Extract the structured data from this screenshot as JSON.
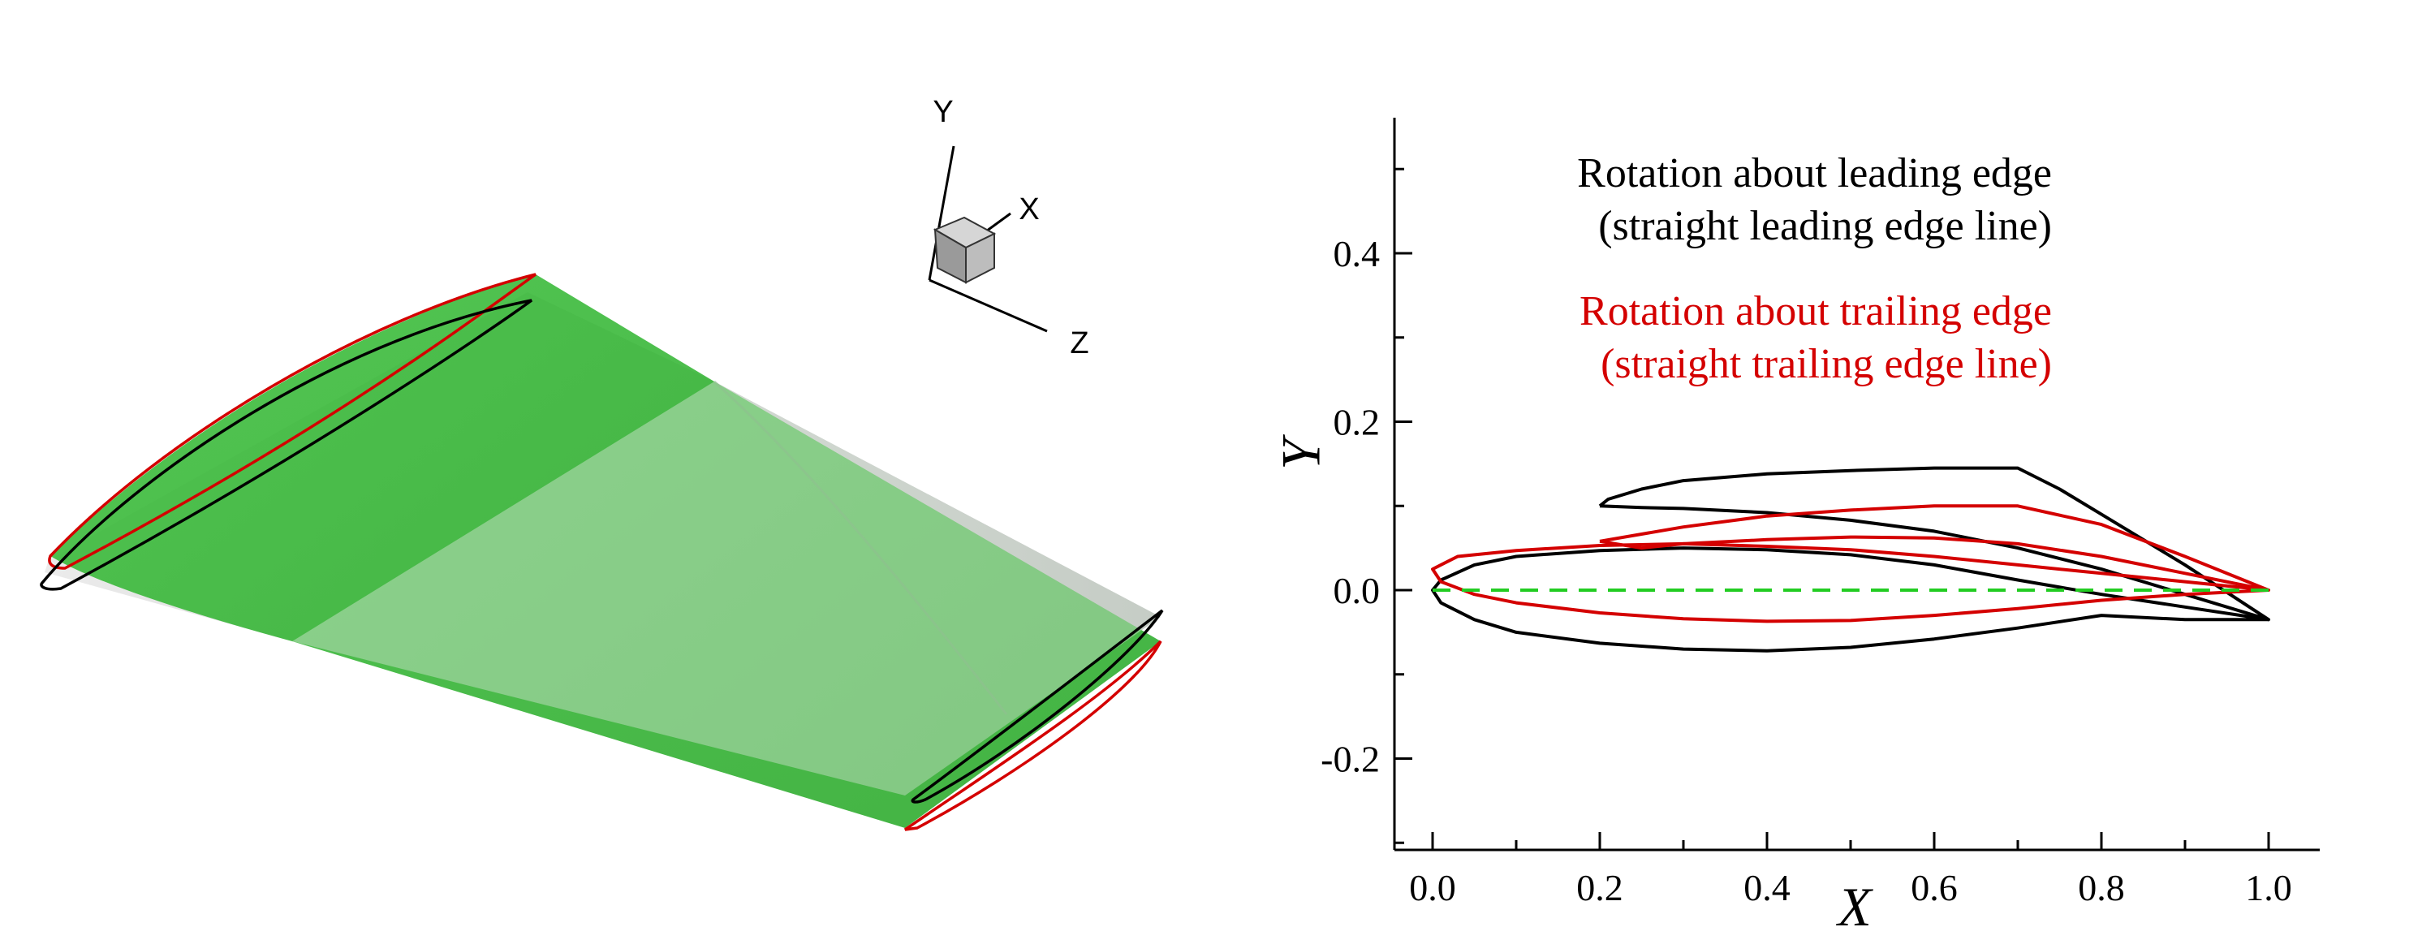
{
  "triad": {
    "y": "Y",
    "x": "X",
    "z": "Z"
  },
  "chart_data": {
    "type": "line",
    "title": "",
    "xlabel": "X",
    "ylabel": "Y",
    "xlim": [
      -0.05,
      1.05
    ],
    "ylim": [
      -0.3,
      0.57
    ],
    "grid": false,
    "xticks": [
      "0.0",
      "0.2",
      "0.4",
      "0.6",
      "0.8",
      "1.0"
    ],
    "xtick_values": [
      0.0,
      0.2,
      0.4,
      0.6,
      0.8,
      1.0
    ],
    "yticks": [
      "-0.2",
      "0.0",
      "0.2",
      "0.4"
    ],
    "ytick_values": [
      -0.2,
      0.0,
      0.2,
      0.4
    ],
    "legend_position": "top-right",
    "annotations": [
      {
        "line1": "Rotation about leading edge",
        "line2": "(straight leading edge line)",
        "color": "#000000"
      },
      {
        "line1": "Rotation about trailing edge",
        "line2": "(straight trailing edge line)",
        "color": "#d40000"
      }
    ],
    "series": [
      {
        "color": "#000000",
        "style": "solid",
        "points": [
          [
            1.0,
            -0.035
          ],
          [
            0.9,
            -0.02
          ],
          [
            0.8,
            -0.005
          ],
          [
            0.7,
            0.012
          ],
          [
            0.6,
            0.03
          ],
          [
            0.5,
            0.042
          ],
          [
            0.4,
            0.048
          ],
          [
            0.3,
            0.05
          ],
          [
            0.2,
            0.047
          ],
          [
            0.1,
            0.04
          ],
          [
            0.05,
            0.03
          ],
          [
            0.01,
            0.012
          ],
          [
            0.0,
            0.0
          ],
          [
            0.01,
            -0.015
          ],
          [
            0.05,
            -0.035
          ],
          [
            0.1,
            -0.05
          ],
          [
            0.2,
            -0.063
          ],
          [
            0.3,
            -0.07
          ],
          [
            0.4,
            -0.072
          ],
          [
            0.5,
            -0.068
          ],
          [
            0.6,
            -0.058
          ],
          [
            0.7,
            -0.045
          ],
          [
            0.8,
            -0.03
          ],
          [
            0.9,
            -0.035
          ],
          [
            1.0,
            -0.035
          ]
        ]
      },
      {
        "color": "#000000",
        "style": "solid",
        "points": [
          [
            0.2,
            0.1
          ],
          [
            0.21,
            0.108
          ],
          [
            0.25,
            0.12
          ],
          [
            0.3,
            0.13
          ],
          [
            0.4,
            0.138
          ],
          [
            0.5,
            0.142
          ],
          [
            0.6,
            0.145
          ],
          [
            0.7,
            0.145
          ],
          [
            0.75,
            0.12
          ],
          [
            0.8,
            0.09
          ],
          [
            0.9,
            0.03
          ],
          [
            1.0,
            -0.035
          ],
          [
            0.9,
            -0.005
          ],
          [
            0.8,
            0.025
          ],
          [
            0.7,
            0.05
          ],
          [
            0.6,
            0.07
          ],
          [
            0.5,
            0.083
          ],
          [
            0.4,
            0.092
          ],
          [
            0.3,
            0.097
          ],
          [
            0.25,
            0.098
          ],
          [
            0.2,
            0.1
          ]
        ]
      },
      {
        "color": "#d40000",
        "style": "solid",
        "points": [
          [
            1.0,
            0.0
          ],
          [
            0.9,
            0.01
          ],
          [
            0.8,
            0.02
          ],
          [
            0.7,
            0.03
          ],
          [
            0.6,
            0.04
          ],
          [
            0.5,
            0.048
          ],
          [
            0.4,
            0.052
          ],
          [
            0.3,
            0.055
          ],
          [
            0.2,
            0.053
          ],
          [
            0.1,
            0.047
          ],
          [
            0.03,
            0.04
          ],
          [
            0.0,
            0.025
          ],
          [
            0.01,
            0.01
          ],
          [
            0.05,
            -0.005
          ],
          [
            0.1,
            -0.015
          ],
          [
            0.2,
            -0.027
          ],
          [
            0.3,
            -0.034
          ],
          [
            0.4,
            -0.037
          ],
          [
            0.5,
            -0.036
          ],
          [
            0.6,
            -0.03
          ],
          [
            0.7,
            -0.022
          ],
          [
            0.8,
            -0.012
          ],
          [
            0.9,
            -0.005
          ],
          [
            1.0,
            0.0
          ]
        ]
      },
      {
        "color": "#d40000",
        "style": "solid",
        "points": [
          [
            0.2,
            0.058
          ],
          [
            0.3,
            0.075
          ],
          [
            0.4,
            0.088
          ],
          [
            0.5,
            0.095
          ],
          [
            0.6,
            0.1
          ],
          [
            0.7,
            0.1
          ],
          [
            0.8,
            0.078
          ],
          [
            0.9,
            0.04
          ],
          [
            1.0,
            0.0
          ],
          [
            0.9,
            0.02
          ],
          [
            0.8,
            0.04
          ],
          [
            0.7,
            0.055
          ],
          [
            0.6,
            0.062
          ],
          [
            0.5,
            0.063
          ],
          [
            0.4,
            0.06
          ],
          [
            0.3,
            0.055
          ],
          [
            0.25,
            0.05
          ],
          [
            0.2,
            0.058
          ]
        ]
      },
      {
        "color": "#22cc22",
        "style": "dashed",
        "points": [
          [
            0.0,
            0.0
          ],
          [
            1.0,
            0.0
          ]
        ]
      }
    ]
  }
}
